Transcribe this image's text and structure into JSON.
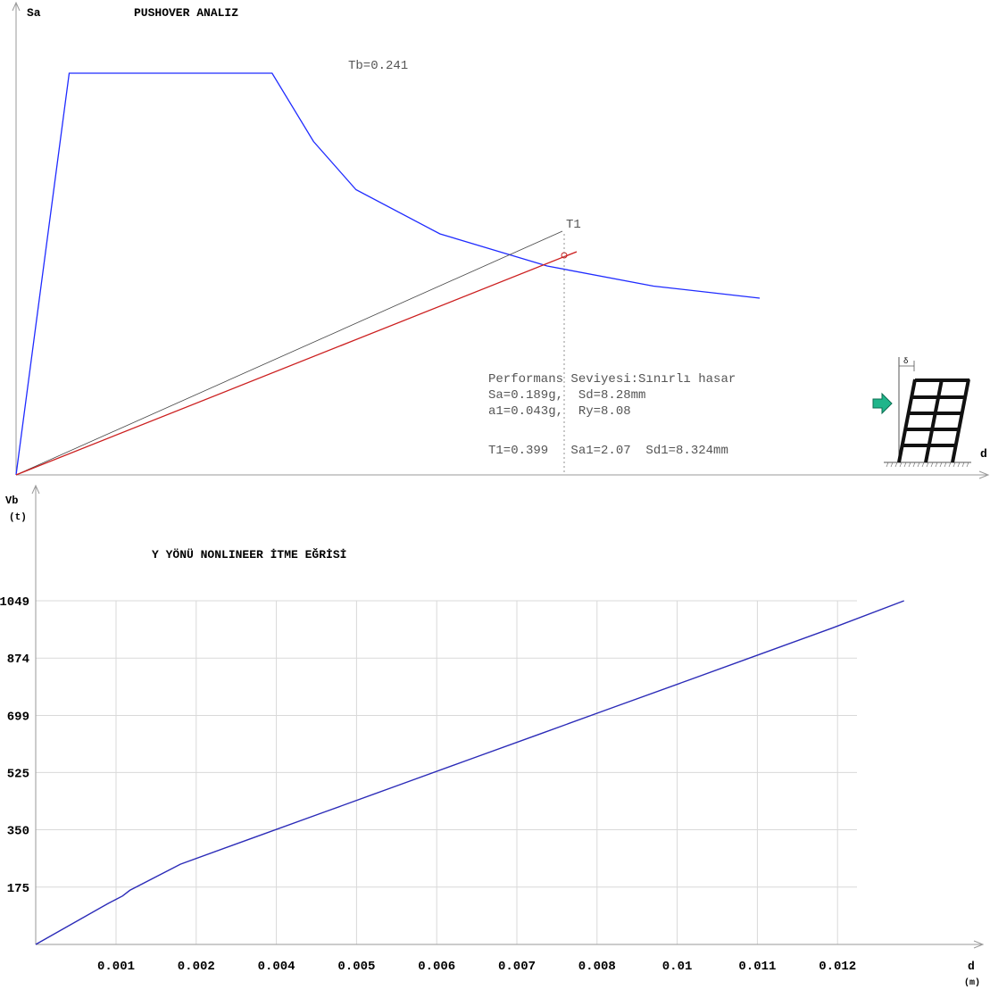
{
  "chart_data": [
    {
      "type": "line",
      "title": "PUSHOVER ANALIZ",
      "ylabel": "Sa",
      "xlabel": "d",
      "grid": false,
      "series": [
        {
          "name": "",
          "color": "#1f2bff",
          "x": [
            0.0,
            0.05,
            0.241,
            0.28,
            0.32,
            0.399,
            0.5,
            0.6,
            0.7
          ],
          "y": [
            0.0,
            1.0,
            1.0,
            0.83,
            0.71,
            0.6,
            0.52,
            0.47,
            0.44
          ]
        }
      ],
      "annotations": {
        "tb_label": "Tb=0.241",
        "t1_label": "T1",
        "performance_line": "Performans Seviyesi:Sınırlı hasar",
        "sa_sd_line": "Sa=0.189g,  Sd=8.28mm",
        "a1_ry_line": "a1=0.043g,  Ry=8.08",
        "t1_line": "T1=0.399   Sa1=2.07  Sd1=8.324mm",
        "icon": "building-frame-pushover-icon",
        "delta_symbol": "δ"
      }
    },
    {
      "type": "line",
      "title": "Y YÖNÜ NONLINEER İTME EĞRİSİ",
      "ylabel": "Vb",
      "ylabel_unit": "(t)",
      "xlabel": "d",
      "xlabel_unit": "(m)",
      "grid": true,
      "ylim": [
        0,
        1049
      ],
      "xlim": [
        0,
        0.0123
      ],
      "y_ticks": [
        175,
        350,
        525,
        699,
        874,
        1049
      ],
      "x_ticks": [
        0.001,
        0.002,
        0.004,
        0.005,
        0.006,
        0.007,
        0.008,
        0.01,
        0.011,
        0.012
      ],
      "series": [
        {
          "name": "",
          "color": "#2b2bb8",
          "x": [
            0.0,
            0.001,
            0.0012,
            0.0013,
            0.002,
            0.003,
            0.004,
            0.005,
            0.006,
            0.007,
            0.008,
            0.009,
            0.01,
            0.011,
            0.012
          ],
          "y": [
            0,
            125,
            148,
            165,
            245,
            325,
            405,
            485,
            565,
            645,
            725,
            805,
            885,
            965,
            1049
          ]
        }
      ]
    }
  ]
}
